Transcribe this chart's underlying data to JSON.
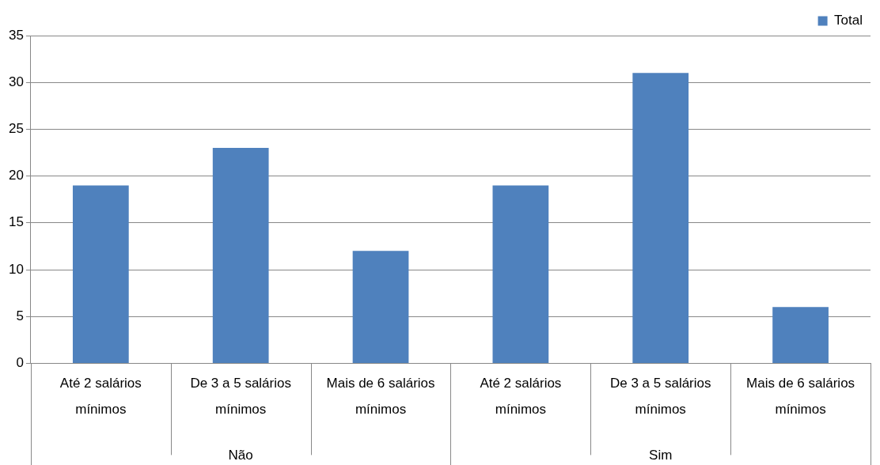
{
  "chart_data": {
    "type": "bar",
    "categories": [
      "Até 2 salários mínimos",
      "De 3 a 5 salários mínimos",
      "Mais de 6 salários mínimos",
      "Até 2 salários mínimos",
      "De 3 a 5 salários mínimos",
      "Mais de 6 salários mínimos"
    ],
    "series": [
      {
        "name": "Total",
        "color": "#4f81bd",
        "values": [
          19,
          23,
          12,
          19,
          31,
          6
        ]
      }
    ],
    "ylim": [
      0,
      35
    ],
    "yticks": [
      0,
      5,
      10,
      15,
      20,
      25,
      30,
      35
    ],
    "grid": "y",
    "legend": "top right",
    "annotations": [
      "Não",
      "Sim"
    ]
  }
}
